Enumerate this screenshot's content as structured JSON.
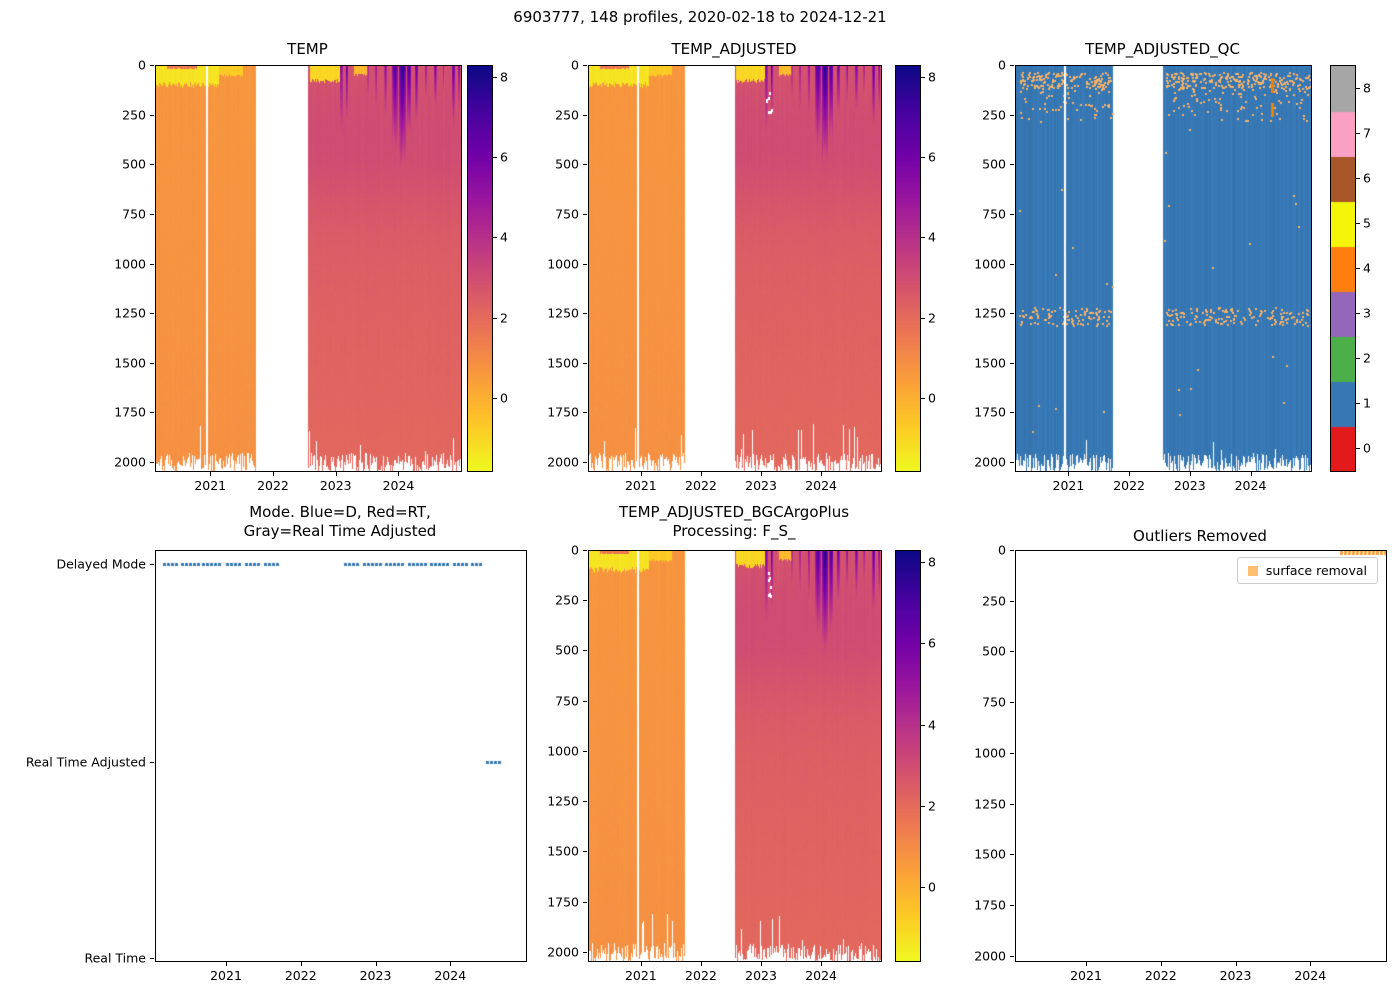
{
  "figure": {
    "title": "6903777, 148 profiles, 2020-02-18 to 2024-12-21"
  },
  "temp_field": {
    "segments": [
      {
        "t0": 2020.12,
        "t1": 2021.72,
        "surface": 0.7,
        "deep": 0.85,
        "mid": 0
      },
      {
        "t0": 2022.55,
        "t1": 2024.98,
        "surface": 2.7,
        "deep": 2.1,
        "mid": 0.45
      }
    ],
    "patches": [
      {
        "t0": 2020.12,
        "t1": 2021.12,
        "d0": 0,
        "d1": 95,
        "v": -1.3
      },
      {
        "t0": 2021.12,
        "t1": 2021.5,
        "d0": 0,
        "d1": 48,
        "v": -0.7
      },
      {
        "t0": 2020.3,
        "t1": 2020.78,
        "d0": 0,
        "d1": 14,
        "v": 1.6
      },
      {
        "t0": 2022.57,
        "t1": 2023.05,
        "d0": 0,
        "d1": 75,
        "v": -1.0
      },
      {
        "t0": 2023.28,
        "t1": 2023.5,
        "d0": 0,
        "d1": 45,
        "v": -0.3
      }
    ],
    "plumes": [
      [
        2023.07,
        0.025,
        330,
        6.0
      ],
      [
        2023.16,
        0.018,
        260,
        6.8
      ],
      [
        2023.5,
        0.02,
        160,
        4.8
      ],
      [
        2023.63,
        0.018,
        210,
        5.2
      ],
      [
        2023.78,
        0.02,
        240,
        5.6
      ],
      [
        2023.93,
        0.045,
        390,
        7.3
      ],
      [
        2024.05,
        0.055,
        470,
        8.3
      ],
      [
        2024.15,
        0.035,
        360,
        7.6
      ],
      [
        2024.27,
        0.025,
        260,
        6.6
      ],
      [
        2024.42,
        0.018,
        190,
        5.6
      ],
      [
        2024.57,
        0.02,
        210,
        6.4
      ],
      [
        2024.7,
        0.013,
        150,
        5.1
      ],
      [
        2024.86,
        0.025,
        290,
        6.9
      ],
      [
        2024.95,
        0.015,
        210,
        6.1
      ]
    ],
    "gap_lines": [
      2020.93
    ]
  },
  "chart_data": [
    {
      "id": "temp",
      "type": "heatmap",
      "title": "TEMP",
      "x_range": [
        2020.12,
        2024.98
      ],
      "y_range": [
        0,
        2040
      ],
      "x_ticks": [
        2021,
        2022,
        2023,
        2024
      ],
      "y_ticks": [
        0,
        250,
        500,
        750,
        1000,
        1250,
        1500,
        1750,
        2000
      ],
      "field_ref": "temp_field",
      "seed": 11,
      "colorbar": {
        "kind": "continuous",
        "cmap": "plasma_r",
        "vmin": -1.8,
        "vmax": 8.3,
        "ticks": [
          0,
          2,
          4,
          6,
          8
        ]
      }
    },
    {
      "id": "temp_adjusted",
      "type": "heatmap",
      "title": "TEMP_ADJUSTED",
      "x_range": [
        2020.12,
        2024.98
      ],
      "y_range": [
        0,
        2040
      ],
      "x_ticks": [
        2021,
        2022,
        2023,
        2024
      ],
      "y_ticks": [
        0,
        250,
        500,
        750,
        1000,
        1250,
        1500,
        1750,
        2000
      ],
      "field_ref": "temp_field",
      "seed": 12,
      "white_dots": [
        {
          "t": 2023.1,
          "d0": 80,
          "d1": 260,
          "n": 7
        }
      ],
      "colorbar": {
        "kind": "continuous",
        "cmap": "plasma_r",
        "vmin": -1.8,
        "vmax": 8.3,
        "ticks": [
          0,
          2,
          4,
          6,
          8
        ]
      }
    },
    {
      "id": "temp_adjusted_qc",
      "type": "qc_heatmap",
      "title": "TEMP_ADJUSTED_QC",
      "x_range": [
        2020.12,
        2024.98
      ],
      "y_range": [
        0,
        2040
      ],
      "x_ticks": [
        2021,
        2022,
        2023,
        2024
      ],
      "y_ticks": [
        0,
        250,
        500,
        750,
        1000,
        1250,
        1500,
        1750,
        2000
      ],
      "field_ref": "temp_field",
      "seed": 13,
      "body_qc": 1,
      "speckle_color": "#f7b267",
      "dash_color": "#e8820e",
      "speckles": [
        {
          "t0": 2020.15,
          "t1": 2021.7,
          "d0": 30,
          "d1": 110,
          "n": 150
        },
        {
          "t0": 2020.15,
          "t1": 2021.7,
          "d0": 110,
          "d1": 280,
          "n": 55
        },
        {
          "t0": 2022.58,
          "t1": 2024.95,
          "d0": 30,
          "d1": 110,
          "n": 240
        },
        {
          "t0": 2022.58,
          "t1": 2024.95,
          "d0": 110,
          "d1": 280,
          "n": 85
        },
        {
          "t0": 2020.15,
          "t1": 2021.7,
          "d0": 1215,
          "d1": 1305,
          "n": 100
        },
        {
          "t0": 2022.58,
          "t1": 2024.95,
          "d0": 1215,
          "d1": 1305,
          "n": 150
        },
        {
          "t0": 2020.15,
          "t1": 2024.95,
          "d0": 300,
          "d1": 1150,
          "n": 22
        },
        {
          "t0": 2020.15,
          "t1": 2024.95,
          "d0": 1350,
          "d1": 1950,
          "n": 16
        }
      ],
      "dashes": [
        {
          "t": 2024.33,
          "d0": 60,
          "d1": 135
        },
        {
          "t": 2024.33,
          "d0": 185,
          "d1": 255
        }
      ],
      "colorbar": {
        "kind": "discrete",
        "ticks": [
          0,
          1,
          2,
          3,
          4,
          5,
          6,
          7,
          8
        ],
        "colors": [
          "#e31a1c",
          "#3778b4",
          "#4daf4a",
          "#9467bd",
          "#ff7f0e",
          "#f5f50a",
          "#a65628",
          "#f9a0c3",
          "#a6a6a6"
        ]
      }
    },
    {
      "id": "mode",
      "type": "mode",
      "title_lines": [
        "Mode. Blue=D, Red=RT,",
        "Gray=Real Time Adjusted"
      ],
      "x_range": [
        2020.05,
        2025.0
      ],
      "x_ticks": [
        2021,
        2022,
        2023,
        2024
      ],
      "categories": [
        "Delayed Mode",
        "Real Time Adjusted",
        "Real Time"
      ],
      "cat_fracs": [
        0.034,
        0.518,
        0.995
      ],
      "marker_color": "#3779b5",
      "runs": [
        {
          "cat": 0,
          "t0": 2020.14,
          "t1": 2020.34
        },
        {
          "cat": 0,
          "t0": 2020.38,
          "t1": 2020.62
        },
        {
          "cat": 0,
          "t0": 2020.66,
          "t1": 2020.92
        },
        {
          "cat": 0,
          "t0": 2020.98,
          "t1": 2021.2
        },
        {
          "cat": 0,
          "t0": 2021.24,
          "t1": 2021.46
        },
        {
          "cat": 0,
          "t0": 2021.5,
          "t1": 2021.7
        },
        {
          "cat": 0,
          "t0": 2022.56,
          "t1": 2022.78
        },
        {
          "cat": 0,
          "t0": 2022.82,
          "t1": 2023.08
        },
        {
          "cat": 0,
          "t0": 2023.12,
          "t1": 2023.38
        },
        {
          "cat": 0,
          "t0": 2023.42,
          "t1": 2023.68
        },
        {
          "cat": 0,
          "t0": 2023.72,
          "t1": 2023.98
        },
        {
          "cat": 0,
          "t0": 2024.02,
          "t1": 2024.22
        },
        {
          "cat": 0,
          "t0": 2024.26,
          "t1": 2024.42
        },
        {
          "cat": 1,
          "t0": 2024.47,
          "t1": 2024.66
        }
      ]
    },
    {
      "id": "temp_adjusted_bgc",
      "type": "heatmap",
      "title_lines": [
        "TEMP_ADJUSTED_BGCArgoPlus",
        "Processing: F_S_"
      ],
      "x_range": [
        2020.12,
        2024.98
      ],
      "y_range": [
        0,
        2040
      ],
      "x_ticks": [
        2021,
        2022,
        2023,
        2024
      ],
      "y_ticks": [
        0,
        250,
        500,
        750,
        1000,
        1250,
        1500,
        1750,
        2000
      ],
      "field_ref": "temp_field",
      "seed": 14,
      "white_dots": [
        {
          "t": 2023.1,
          "d0": 80,
          "d1": 260,
          "n": 7
        }
      ],
      "colorbar": {
        "kind": "continuous",
        "cmap": "plasma_r",
        "vmin": -1.8,
        "vmax": 8.3,
        "ticks": [
          0,
          2,
          4,
          6,
          8
        ]
      }
    },
    {
      "id": "outliers",
      "type": "outliers",
      "title": "Outliers Removed",
      "x_range": [
        2020.05,
        2025.0
      ],
      "y_range": [
        0,
        2020
      ],
      "x_ticks": [
        2021,
        2022,
        2023,
        2024
      ],
      "y_ticks": [
        0,
        250,
        500,
        750,
        1000,
        1250,
        1500,
        1750,
        2000
      ],
      "legend": {
        "label": "surface removal",
        "marker_color": "#fdbf6f"
      },
      "mark_color": "#f6a142",
      "marks": [
        {
          "t0": 2024.38,
          "t1": 2025.0,
          "d": 0
        }
      ]
    }
  ]
}
